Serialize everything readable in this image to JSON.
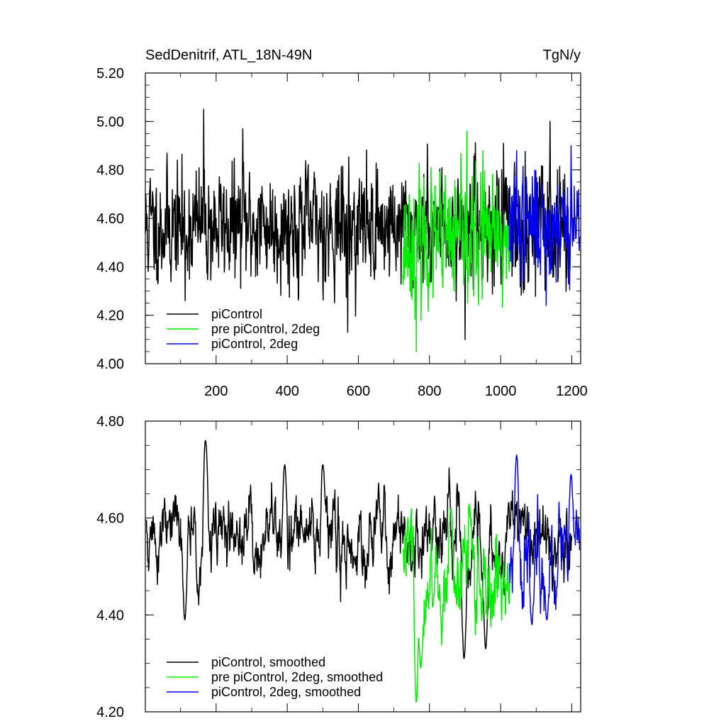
{
  "chart_data": [
    {
      "type": "line",
      "title": "SedDenitrif, ATL_18N-49N",
      "units": "TgN/y",
      "xlim": [
        1,
        1225
      ],
      "ylim": [
        4.0,
        5.2
      ],
      "xticks": [
        200,
        400,
        600,
        800,
        1000,
        1200
      ],
      "xtick_labels": [
        "200",
        "400",
        "600",
        "800",
        "1000",
        "1200"
      ],
      "yticks": [
        4.0,
        4.2,
        4.4,
        4.6,
        4.8,
        5.0,
        5.2
      ],
      "ytick_labels": [
        "4.00",
        "4.20",
        "4.40",
        "4.60",
        "4.80",
        "5.00",
        "5.20"
      ],
      "legend_position": "bottom-left",
      "series": [
        {
          "name": "piControl",
          "color": "#000000",
          "x_start": 1,
          "x_end": 1200,
          "mean": 4.57,
          "spread": 0.13,
          "seed": 11,
          "anchors": [
            [
              165,
              5.05
            ],
            [
              275,
              4.97
            ],
            [
              570,
              4.13
            ],
            [
              900,
              4.1
            ],
            [
              113,
              4.26
            ]
          ]
        },
        {
          "name": "pre piControl, 2deg",
          "color": "#00ee00",
          "x_start": 725,
          "x_end": 1025,
          "mean": 4.5,
          "spread": 0.14,
          "seed": 23,
          "anchors": [
            [
              763,
              4.05
            ],
            [
              905,
              4.96
            ],
            [
              950,
              4.88
            ]
          ]
        },
        {
          "name": "piControl, 2deg",
          "color": "#0000ee",
          "x_start": 1025,
          "x_end": 1222,
          "mean": 4.58,
          "spread": 0.12,
          "seed": 37,
          "anchors": [
            [
              1045,
              4.88
            ],
            [
              1198,
              4.9
            ],
            [
              1128,
              4.24
            ]
          ]
        }
      ]
    },
    {
      "type": "line",
      "title": "",
      "units": "",
      "xlim": [
        1,
        1225
      ],
      "ylim": [
        4.2,
        4.8
      ],
      "xticks": [
        200,
        400,
        600,
        800,
        1000,
        1200
      ],
      "xtick_labels": [],
      "yticks": [
        4.2,
        4.4,
        4.6,
        4.8
      ],
      "ytick_labels": [
        "4.20",
        "4.40",
        "4.60",
        "4.80"
      ],
      "legend_position": "bottom-left",
      "series": [
        {
          "name": "piControl, smoothed",
          "color": "#000000",
          "x_start": 4,
          "x_end": 1200,
          "mean": 4.56,
          "spread": 0.045,
          "seed": 51,
          "anchors": [
            [
              170,
              4.76
            ],
            [
              112,
              4.39
            ],
            [
              393,
              4.71
            ],
            [
              500,
              4.71
            ],
            [
              897,
              4.31
            ],
            [
              958,
              4.33
            ]
          ]
        },
        {
          "name": "pre piControl, 2deg, smoothed",
          "color": "#00ee00",
          "x_start": 725,
          "x_end": 1025,
          "mean": 4.48,
          "spread": 0.06,
          "seed": 63,
          "anchors": [
            [
              763,
              4.22
            ],
            [
              860,
              4.62
            ],
            [
              775,
              4.29
            ]
          ]
        },
        {
          "name": "piControl, 2deg, smoothed",
          "color": "#0000ee",
          "x_start": 1025,
          "x_end": 1222,
          "mean": 4.52,
          "spread": 0.05,
          "seed": 77,
          "anchors": [
            [
              1045,
              4.73
            ],
            [
              1198,
              4.69
            ],
            [
              1088,
              4.38
            ],
            [
              1130,
              4.39
            ]
          ]
        }
      ]
    }
  ]
}
